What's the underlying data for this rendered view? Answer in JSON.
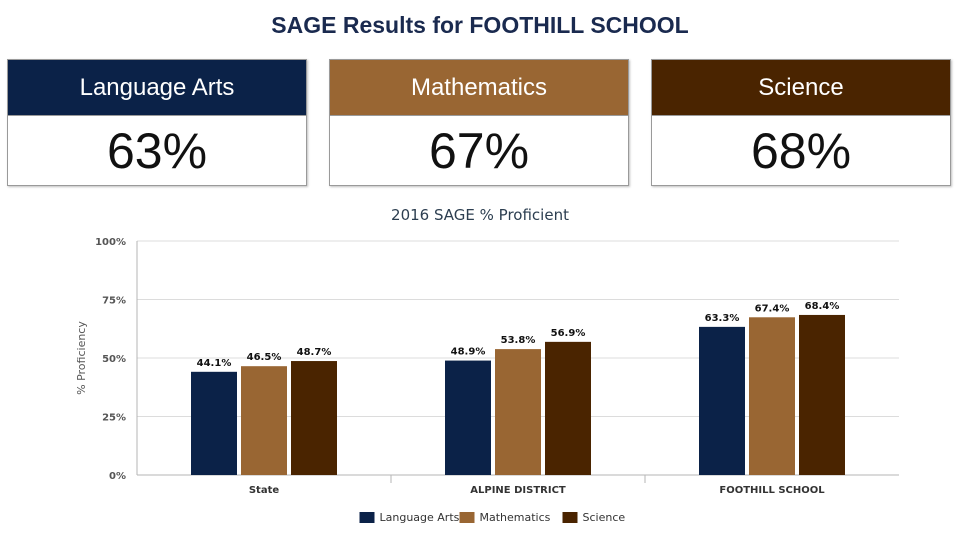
{
  "page_title": "SAGE Results for FOOTHILL SCHOOL",
  "cards": [
    {
      "label": "Language Arts",
      "value": "63%",
      "color": "#0b2248"
    },
    {
      "label": "Mathematics",
      "value": "67%",
      "color": "#996633"
    },
    {
      "label": "Science",
      "value": "68%",
      "color": "#4a2400"
    }
  ],
  "chart_data": {
    "type": "bar",
    "title": "2016 SAGE % Proficient",
    "ylabel": "% Proficiency",
    "xlabel": "",
    "ylim": [
      0,
      100
    ],
    "yticks": [
      "0%",
      "25%",
      "50%",
      "75%",
      "100%"
    ],
    "ytick_values": [
      0,
      25,
      50,
      75,
      100
    ],
    "categories": [
      "State",
      "ALPINE DISTRICT",
      "FOOTHILL SCHOOL"
    ],
    "series": [
      {
        "name": "Language Arts",
        "color": "#0b2248",
        "values": [
          44.1,
          48.9,
          63.3
        ],
        "labels": [
          "44.1%",
          "48.9%",
          "63.3%"
        ]
      },
      {
        "name": "Mathematics",
        "color": "#996633",
        "values": [
          46.5,
          53.8,
          67.4
        ],
        "labels": [
          "46.5%",
          "53.8%",
          "67.4%"
        ]
      },
      {
        "name": "Science",
        "color": "#4a2400",
        "values": [
          48.7,
          56.9,
          68.4
        ],
        "labels": [
          "48.7%",
          "56.9%",
          "68.4%"
        ]
      }
    ],
    "grid": true,
    "legend": "bottom"
  }
}
